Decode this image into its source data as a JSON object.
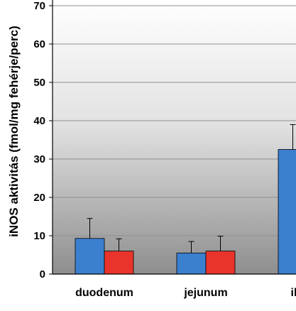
{
  "chart_data": {
    "type": "bar",
    "ylabel": "iNOS aktivitás (fmol/mg fehérje/perc)",
    "ylim": [
      0,
      70
    ],
    "yticks": [
      0,
      10,
      20,
      30,
      40,
      50,
      60,
      70
    ],
    "grid": true,
    "categories": [
      "duodenum",
      "jejunum",
      "il"
    ],
    "series": [
      {
        "color": "#3b7fcf",
        "values": [
          9.3,
          5.5,
          32.5
        ],
        "errors": [
          5.2,
          3.0,
          6.5
        ]
      },
      {
        "color": "#e8342a",
        "values": [
          6.0,
          6.0,
          null
        ],
        "errors": [
          3.2,
          3.9,
          null
        ]
      }
    ]
  }
}
